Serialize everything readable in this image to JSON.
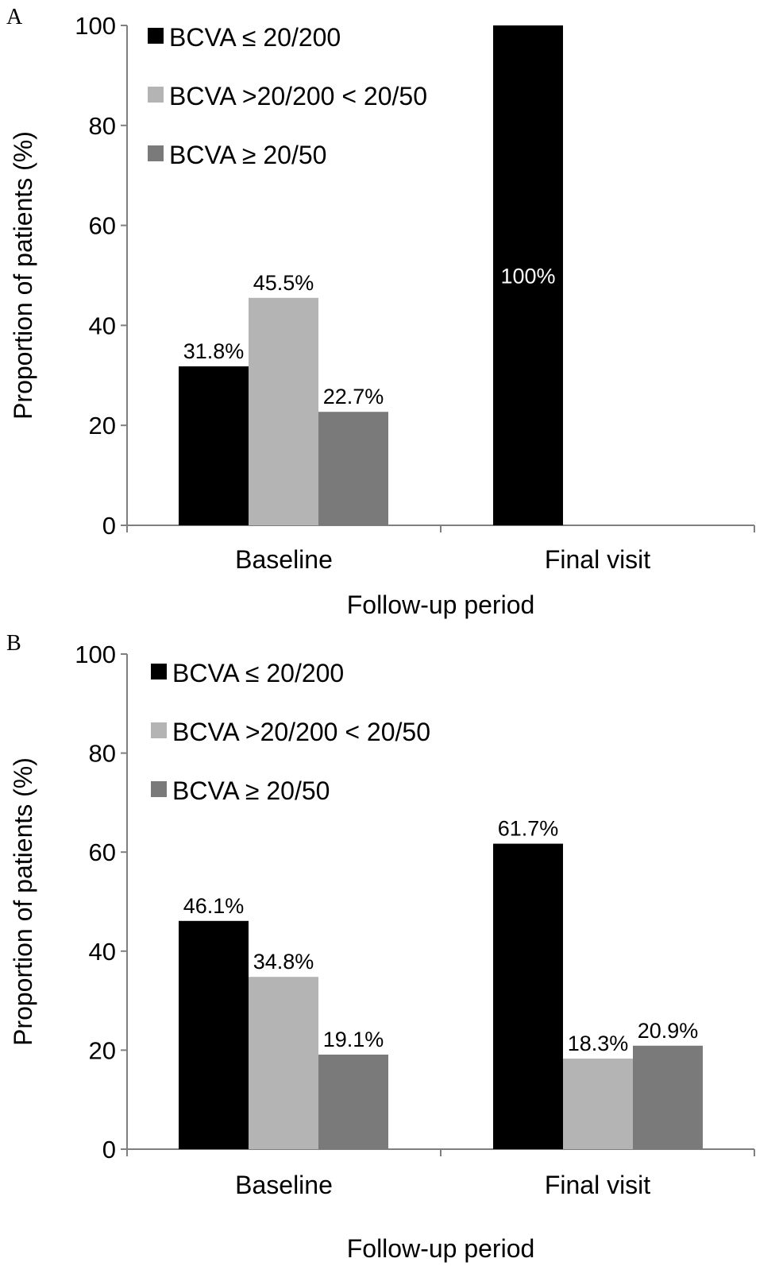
{
  "chart_data": [
    {
      "panel_label": "A",
      "type": "bar",
      "categories": [
        "Baseline",
        "Final visit"
      ],
      "series": [
        {
          "name": "BCVA ≤ 20/200",
          "color": "#000000",
          "values": [
            31.8,
            100
          ],
          "labels": [
            "31.8%",
            "100%"
          ]
        },
        {
          "name": "BCVA >20/200 < 20/50",
          "color": "#b4b4b4",
          "values": [
            45.5,
            null
          ],
          "labels": [
            "45.5%",
            ""
          ]
        },
        {
          "name": "BCVA ≥ 20/50",
          "color": "#7a7a7a",
          "values": [
            22.7,
            null
          ],
          "labels": [
            "22.7%",
            ""
          ]
        }
      ],
      "xlabel": "Follow-up period",
      "ylabel": "Proportion of patients (%)",
      "ylim": [
        0,
        100
      ],
      "yticks": [
        "0",
        "20",
        "40",
        "60",
        "80",
        "100"
      ],
      "grid": false,
      "legend_position": "top-left"
    },
    {
      "panel_label": "B",
      "type": "bar",
      "categories": [
        "Baseline",
        "Final visit"
      ],
      "series": [
        {
          "name": "BCVA ≤ 20/200",
          "color": "#000000",
          "values": [
            46.1,
            61.7
          ],
          "labels": [
            "46.1%",
            "61.7%"
          ]
        },
        {
          "name": "BCVA >20/200 < 20/50",
          "color": "#b4b4b4",
          "values": [
            34.8,
            18.3
          ],
          "labels": [
            "34.8%",
            "18.3%"
          ]
        },
        {
          "name": "BCVA ≥ 20/50",
          "color": "#7a7a7a",
          "values": [
            19.1,
            20.9
          ],
          "labels": [
            "19.1%",
            "20.9%"
          ]
        }
      ],
      "xlabel": "Follow-up period",
      "ylabel": "Proportion of patients (%)",
      "ylim": [
        0,
        100
      ],
      "yticks": [
        "0",
        "20",
        "40",
        "60",
        "80",
        "100"
      ],
      "grid": false,
      "legend_position": "top-left"
    }
  ]
}
